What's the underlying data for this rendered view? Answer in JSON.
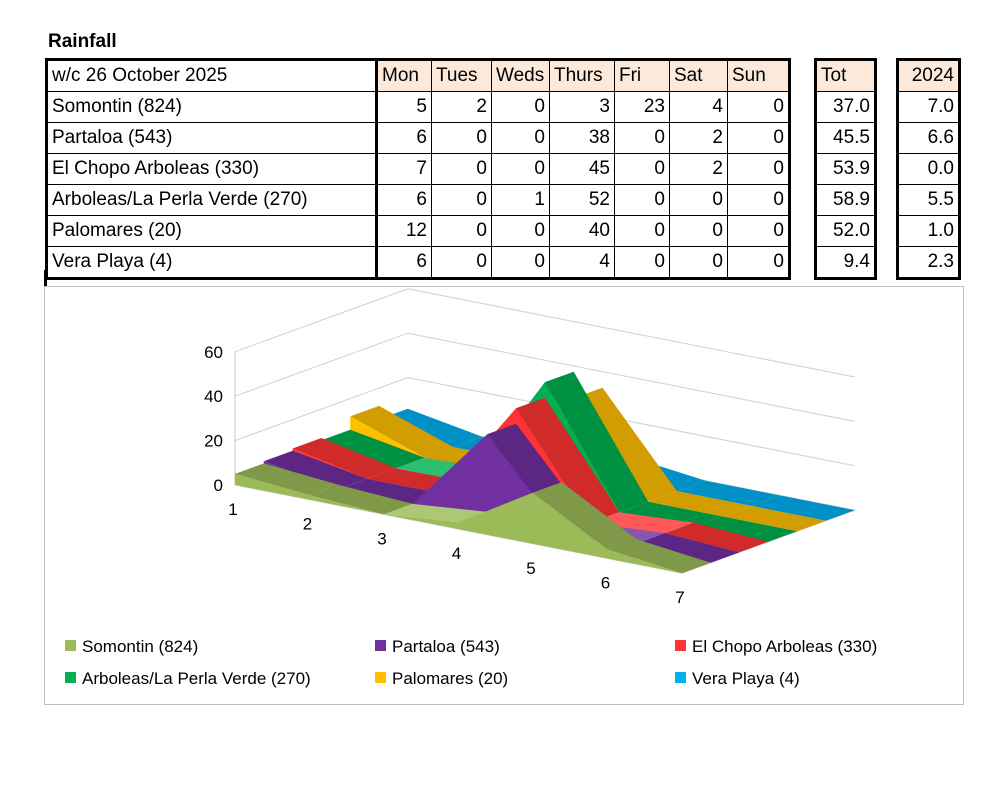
{
  "title": "Rainfall",
  "table": {
    "week_label": "w/c 26 October  2025",
    "days": [
      "Mon",
      "Tues",
      "Weds",
      "Thurs",
      "Fri",
      "Sat",
      "Sun"
    ],
    "total_label": "Tot",
    "year_label": "2024",
    "rows": [
      {
        "name": "Somontin (824)",
        "values": [
          "5",
          "2",
          "0",
          "3",
          "23",
          "4",
          "0"
        ],
        "tot": "37.0",
        "prev": "7.0"
      },
      {
        "name": "Partaloa (543)",
        "values": [
          "6",
          "0",
          "0",
          "38",
          "0",
          "2",
          "0"
        ],
        "tot": "45.5",
        "prev": "6.6"
      },
      {
        "name": "El Chopo Arboleas (330)",
        "values": [
          "7",
          "0",
          "0",
          "45",
          "0",
          "2",
          "0"
        ],
        "tot": "53.9",
        "prev": "0.0"
      },
      {
        "name": "Arboleas/La Perla Verde (270)",
        "values": [
          "6",
          "0",
          "1",
          "52",
          "0",
          "0",
          "0"
        ],
        "tot": "58.9",
        "prev": "5.5"
      },
      {
        "name": "Palomares (20)",
        "values": [
          "12",
          "0",
          "0",
          "40",
          "0",
          "0",
          "0"
        ],
        "tot": "52.0",
        "prev": "1.0"
      },
      {
        "name": "Vera Playa (4)",
        "values": [
          "6",
          "0",
          "0",
          "4",
          "0",
          "0",
          "0"
        ],
        "tot": "9.4",
        "prev": "2.3"
      }
    ]
  },
  "chart_data": {
    "type": "area",
    "view": "3d",
    "title": "",
    "xlabel": "",
    "ylabel": "",
    "x": [
      1,
      2,
      3,
      4,
      5,
      6,
      7
    ],
    "ylim": [
      0,
      60
    ],
    "yticks": [
      0,
      20,
      40,
      60
    ],
    "grid": true,
    "legend_position": "bottom",
    "series": [
      {
        "name": "Somontin (824)",
        "color": "#9bbb59",
        "values": [
          5,
          2,
          0,
          3,
          23,
          4,
          0
        ]
      },
      {
        "name": "Partaloa (543)",
        "color": "#7030a0",
        "values": [
          6,
          0,
          0,
          38,
          0,
          2,
          0
        ]
      },
      {
        "name": "El Chopo Arboleas (330)",
        "color": "#ff3333",
        "values": [
          7,
          0,
          0,
          45,
          0,
          2,
          0
        ]
      },
      {
        "name": "Arboleas/La Perla Verde (270)",
        "color": "#00b050",
        "values": [
          6,
          0,
          1,
          52,
          0,
          0,
          0
        ]
      },
      {
        "name": "Palomares (20)",
        "color": "#ffc000",
        "values": [
          12,
          0,
          0,
          40,
          0,
          0,
          0
        ]
      },
      {
        "name": "Vera Playa (4)",
        "color": "#00b0f0",
        "values": [
          6,
          0,
          0,
          4,
          0,
          0,
          0
        ]
      }
    ]
  }
}
